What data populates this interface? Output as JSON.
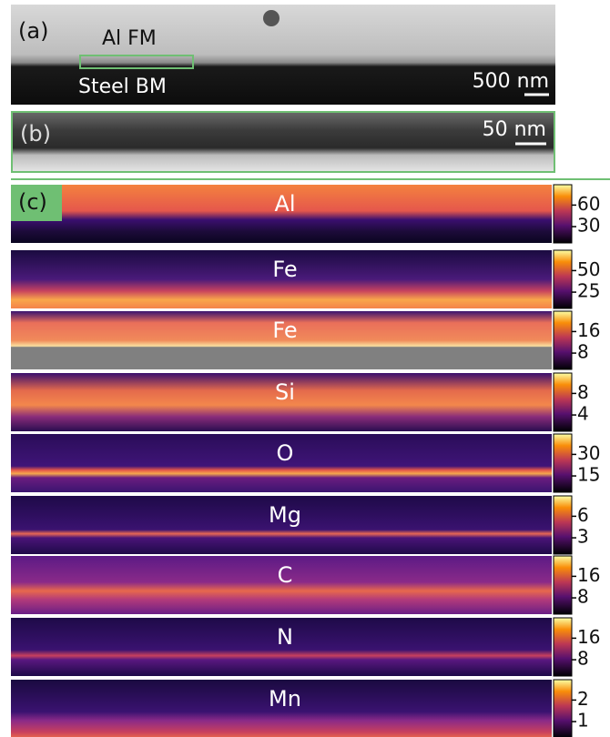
{
  "panel_a": {
    "label": "(a)",
    "region_top": "Al FM",
    "region_bottom": "Steel BM",
    "scale_bar": "500 nm"
  },
  "panel_b": {
    "label": "(b)",
    "scale_bar": "50 nm"
  },
  "panel_c": {
    "label": "(c)",
    "maps": [
      {
        "element": "Al",
        "ticks": [
          60,
          30
        ]
      },
      {
        "element": "Fe",
        "ticks": [
          50,
          25
        ]
      },
      {
        "element": "Fe",
        "ticks": [
          16,
          8
        ]
      },
      {
        "element": "Si",
        "ticks": [
          8,
          4
        ]
      },
      {
        "element": "O",
        "ticks": [
          30,
          15
        ]
      },
      {
        "element": "Mg",
        "ticks": [
          6,
          3
        ]
      },
      {
        "element": "C",
        "ticks": [
          16,
          8
        ]
      },
      {
        "element": "N",
        "ticks": [
          16,
          8
        ]
      },
      {
        "element": "Mn",
        "ticks": [
          2,
          1
        ]
      }
    ]
  }
}
